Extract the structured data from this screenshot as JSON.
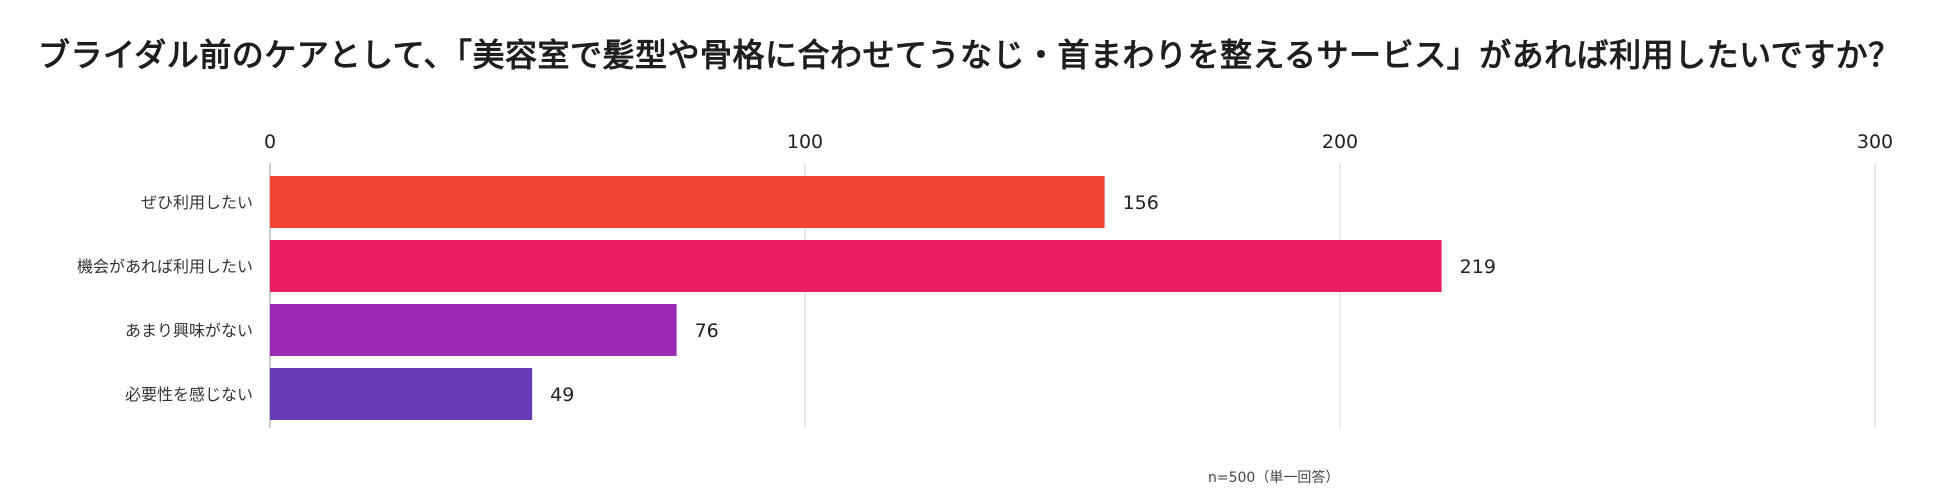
{
  "chart_data": {
    "type": "bar",
    "orientation": "horizontal",
    "title": "ブライダル前のケアとして、「美容室で髪型や骨格に合わせてうなじ・首まわりを整えるサービス」があれば利用したいですか？",
    "categories": [
      "ぜひ利用したい",
      "機会があれば利用したい",
      "あまり興味がない",
      "必要性を感じない"
    ],
    "values": [
      156,
      219,
      76,
      49
    ],
    "colors": [
      "#f44336",
      "#e91e63",
      "#9c27b0",
      "#673ab7"
    ],
    "xlim": [
      0,
      300
    ],
    "ticks": [
      "0",
      "100",
      "200",
      "300"
    ],
    "grid": true,
    "legend": "none",
    "note": "n=500（単一回答）"
  }
}
